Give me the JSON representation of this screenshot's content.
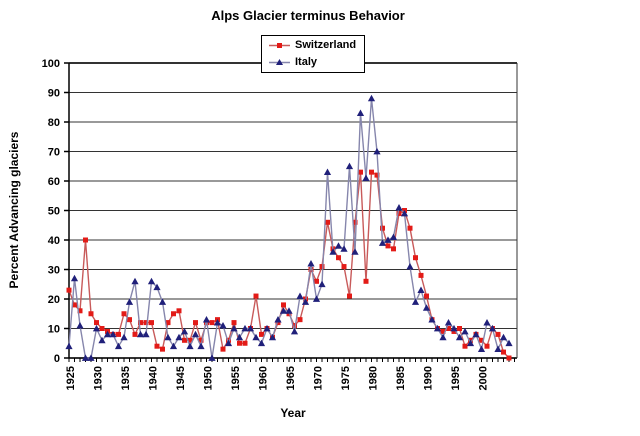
{
  "chart_data": {
    "type": "line",
    "title": "Alps Glacier terminus Behavior",
    "xlabel": "Year",
    "ylabel": "Percent Advancing glaciers",
    "ylim": [
      0,
      100
    ],
    "ytick_step": 10,
    "y_tick_labels": [
      "100",
      "90",
      "80",
      "70",
      "60",
      "50",
      "40",
      "30",
      "20",
      "10",
      "0"
    ],
    "x_tick_labels": [
      "1925",
      "1930",
      "1935",
      "1940",
      "1945",
      "1950",
      "1955",
      "1960",
      "1965",
      "1970",
      "1975",
      "1980",
      "1985",
      "1990",
      "1995",
      "2000"
    ],
    "years": {
      "start": 1925,
      "end": 2005,
      "step": 1
    },
    "grid": true,
    "legend_position": "top-center",
    "series": [
      {
        "name": "Switzerland",
        "marker": "square",
        "marker_color": "#e31b17",
        "line_color": "#c85a5a",
        "values": [
          23,
          18,
          16,
          40,
          15,
          12,
          10,
          9,
          8,
          8,
          15,
          13,
          8,
          12,
          12,
          12,
          4,
          3,
          12,
          15,
          16,
          6,
          6,
          12,
          6,
          12,
          12,
          13,
          3,
          6,
          12,
          5,
          5,
          10,
          21,
          8,
          10,
          7,
          12,
          18,
          15,
          11,
          13,
          20,
          30,
          26,
          31,
          46,
          37,
          34,
          31,
          21,
          46,
          63,
          26,
          63,
          62,
          44,
          38,
          37,
          49,
          50,
          44,
          34,
          28,
          21,
          13,
          10,
          9,
          10,
          9,
          10,
          4,
          6,
          8,
          6,
          4,
          10,
          8,
          2,
          0
        ]
      },
      {
        "name": "Italy",
        "marker": "triangle",
        "marker_color": "#20207a",
        "line_color": "#8686ac",
        "values": [
          4,
          27,
          11,
          0,
          0,
          10,
          6,
          8,
          8,
          4,
          7,
          19,
          26,
          8,
          8,
          26,
          24,
          19,
          7,
          4,
          7,
          9,
          4,
          8,
          4,
          13,
          0,
          12,
          11,
          5,
          10,
          7,
          10,
          10,
          7,
          5,
          10,
          7,
          13,
          16,
          16,
          9,
          21,
          19,
          32,
          20,
          25,
          63,
          36,
          38,
          37,
          65,
          36,
          83,
          61,
          88,
          70,
          39,
          40,
          41,
          51,
          49,
          31,
          19,
          23,
          17,
          13,
          10,
          7,
          12,
          10,
          7,
          9,
          5,
          8,
          3,
          12,
          10,
          3,
          7,
          5
        ]
      }
    ],
    "colors": {
      "grid": "#333333",
      "axis": "#000000",
      "text": "#000000",
      "plot_background": "#ffffff"
    }
  }
}
